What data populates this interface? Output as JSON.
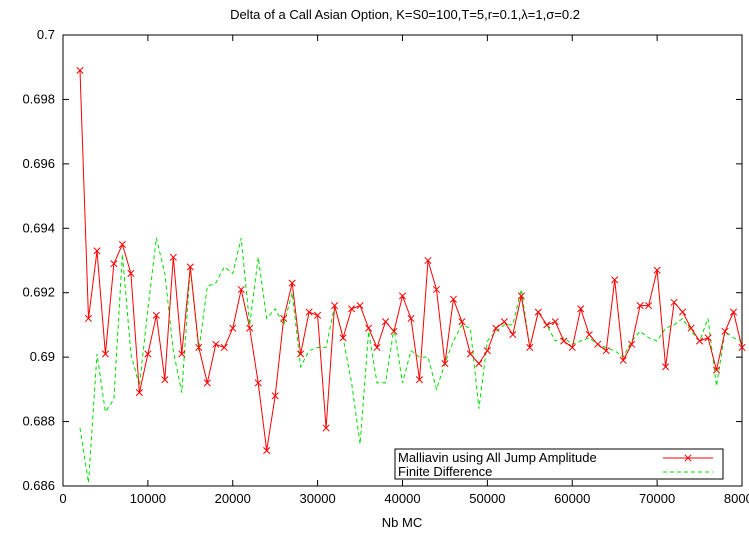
{
  "chart_data": {
    "type": "line",
    "title": "Delta of a Call Asian Option, K=S0=100,T=5,r=0.1,λ=1,σ=0.2",
    "xlabel": "Nb MC",
    "ylabel": "",
    "xlim": [
      0,
      80000
    ],
    "ylim": [
      0.686,
      0.7
    ],
    "xticks": [
      0,
      10000,
      20000,
      30000,
      40000,
      50000,
      60000,
      70000,
      80000
    ],
    "yticks": [
      0.686,
      0.688,
      0.69,
      0.692,
      0.694,
      0.696,
      0.698,
      0.7
    ],
    "xtick_labels": [
      "0",
      "10000",
      "20000",
      "30000",
      "40000",
      "50000",
      "60000",
      "70000",
      "80000"
    ],
    "ytick_labels": [
      "0.686",
      "0.688",
      "0.69",
      "0.692",
      "0.694",
      "0.696",
      "0.698",
      "0.7"
    ],
    "grid": false,
    "legend_position": "bottom-right",
    "x": [
      2000,
      3000,
      4000,
      5000,
      6000,
      7000,
      8000,
      9000,
      10000,
      11000,
      12000,
      13000,
      14000,
      15000,
      16000,
      17000,
      18000,
      19000,
      20000,
      21000,
      22000,
      23000,
      24000,
      25000,
      26000,
      27000,
      28000,
      29000,
      30000,
      31000,
      32000,
      33000,
      34000,
      35000,
      36000,
      37000,
      38000,
      39000,
      40000,
      41000,
      42000,
      43000,
      44000,
      45000,
      46000,
      47000,
      48000,
      49000,
      50000,
      51000,
      52000,
      53000,
      54000,
      55000,
      56000,
      57000,
      58000,
      59000,
      60000,
      61000,
      62000,
      63000,
      64000,
      65000,
      66000,
      67000,
      68000,
      69000,
      70000,
      71000,
      72000,
      73000,
      74000,
      75000,
      76000,
      77000,
      78000,
      79000,
      80000
    ],
    "series": [
      {
        "name": "Malliavin using All Jump Amplitude",
        "color": "#ff0000",
        "marker": "x",
        "dash": "solid",
        "values": [
          0.6989,
          0.6912,
          0.6933,
          0.6901,
          0.6929,
          0.6935,
          0.6926,
          0.6889,
          0.6901,
          0.6913,
          0.6893,
          0.6931,
          0.6901,
          0.6928,
          0.6903,
          0.6892,
          0.6904,
          0.6903,
          0.6909,
          0.6921,
          0.6909,
          0.6892,
          0.6871,
          0.6888,
          0.6912,
          0.6923,
          0.6901,
          0.6914,
          0.6913,
          0.6878,
          0.6916,
          0.6906,
          0.6915,
          0.6916,
          0.6909,
          0.6903,
          0.6911,
          0.6908,
          0.6919,
          0.6912,
          0.6893,
          0.693,
          0.6921,
          0.6898,
          0.6918,
          0.6911,
          0.6901,
          0.6898,
          0.6902,
          0.6909,
          0.6911,
          0.6907,
          0.6919,
          0.6903,
          0.6914,
          0.691,
          0.6911,
          0.6905,
          0.6903,
          0.6915,
          0.6907,
          0.6904,
          0.6902,
          0.6924,
          0.6899,
          0.6904,
          0.6916,
          0.6916,
          0.6927,
          0.6897,
          0.6917,
          0.6914,
          0.6909,
          0.6905,
          0.6906,
          0.6896,
          0.6908,
          0.6914,
          0.6903
        ]
      },
      {
        "name": "Finite Difference",
        "color": "#00dd00",
        "marker": "none",
        "dash": "dashed",
        "values": [
          0.6878,
          0.6861,
          0.6901,
          0.6883,
          0.6887,
          0.6932,
          0.6901,
          0.6891,
          0.6915,
          0.6937,
          0.6926,
          0.6902,
          0.6889,
          0.6928,
          0.6902,
          0.6922,
          0.6923,
          0.6928,
          0.6926,
          0.6937,
          0.691,
          0.6931,
          0.6912,
          0.6915,
          0.691,
          0.692,
          0.6897,
          0.6902,
          0.6903,
          0.6903,
          0.6916,
          0.6906,
          0.6892,
          0.6873,
          0.6908,
          0.6892,
          0.6892,
          0.6909,
          0.6892,
          0.6902,
          0.69,
          0.69,
          0.689,
          0.6898,
          0.6905,
          0.691,
          0.6909,
          0.6884,
          0.6905,
          0.6908,
          0.691,
          0.691,
          0.6921,
          0.6903,
          0.6914,
          0.691,
          0.6905,
          0.6906,
          0.6904,
          0.6905,
          0.6906,
          0.6904,
          0.6903,
          0.6902,
          0.69,
          0.6905,
          0.6908,
          0.6906,
          0.6905,
          0.6909,
          0.691,
          0.6912,
          0.6908,
          0.6905,
          0.6912,
          0.6891,
          0.6908,
          0.6906,
          0.6905
        ]
      }
    ]
  }
}
